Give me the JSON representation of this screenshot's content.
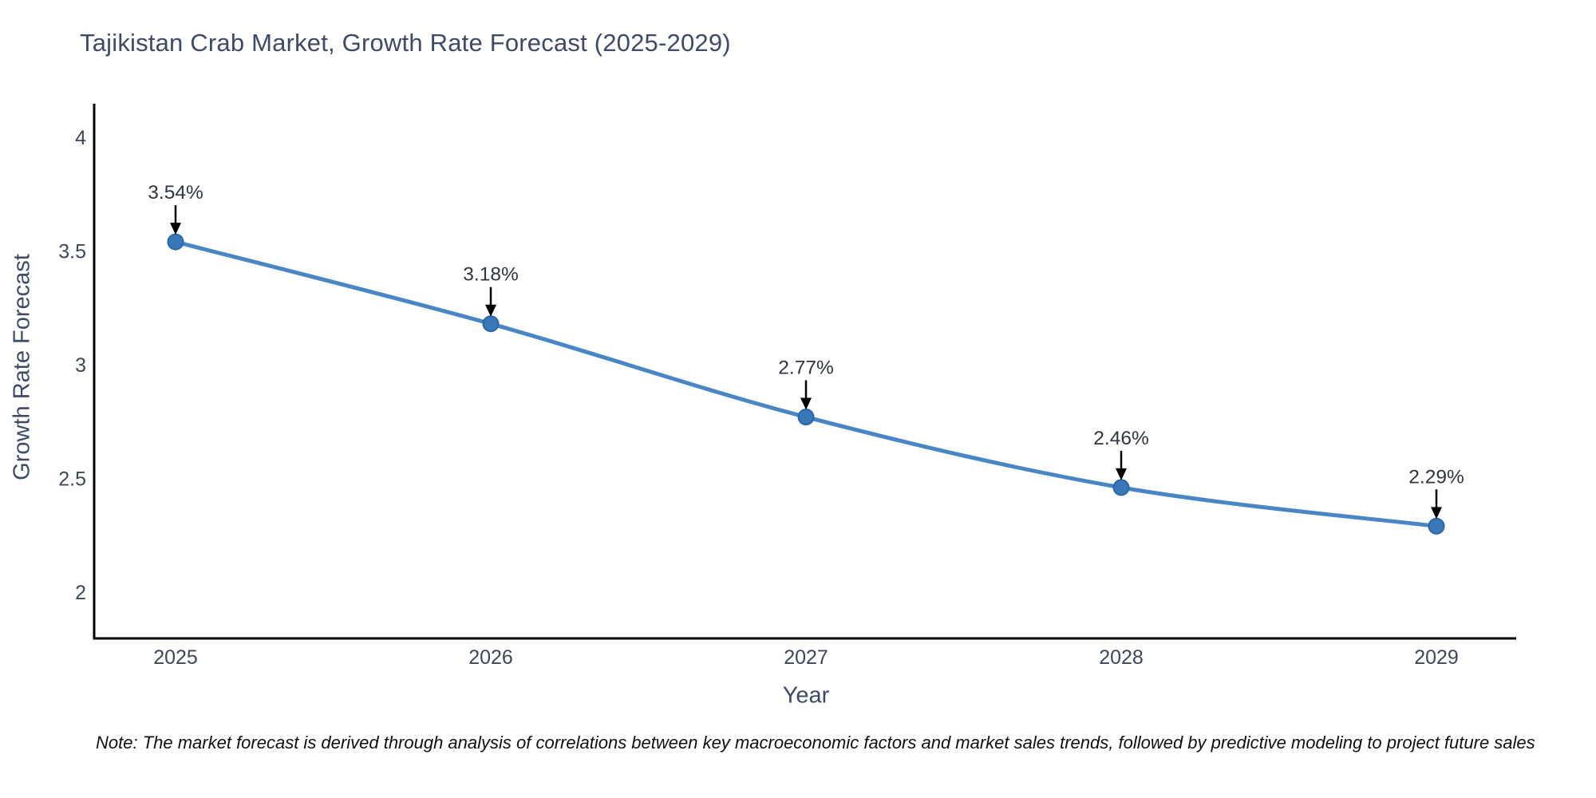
{
  "page": {
    "background": "#ffffff"
  },
  "chart_data": {
    "type": "line",
    "title": "Tajikistan Crab Market, Growth Rate Forecast (2025-2029)",
    "xlabel": "Year",
    "ylabel": "Growth Rate Forecast",
    "categories": [
      "2025",
      "2026",
      "2027",
      "2028",
      "2029"
    ],
    "values": [
      3.54,
      3.18,
      2.77,
      2.46,
      2.29
    ],
    "point_labels": [
      "3.54%",
      "3.18%",
      "2.77%",
      "2.46%",
      "2.29%"
    ],
    "y_ticks": [
      {
        "value": 4,
        "label": "4"
      },
      {
        "value": 3.5,
        "label": "3.5"
      },
      {
        "value": 3,
        "label": "3"
      },
      {
        "value": 2.5,
        "label": "2.5"
      },
      {
        "value": 2,
        "label": "2"
      }
    ],
    "ylim": [
      1.8,
      4.15
    ],
    "grid": false,
    "legend": null,
    "line_shape": "spline",
    "annotations": "each point labeled with percent value and a downward black arrow",
    "colors": {
      "line": "#4886c5",
      "marker_fill": "#3878b8",
      "marker_stroke": "#2b67a5",
      "arrow": "#000000",
      "annotation_text": "#2e3440",
      "axis_line": "#010101",
      "tick_text": "#3d4758",
      "title_text": "#3e4a66"
    }
  },
  "note": {
    "text": "Note: The market forecast is derived through analysis of correlations between key macroeconomic factors and market sales trends, followed by predictive modeling to project future sales"
  }
}
